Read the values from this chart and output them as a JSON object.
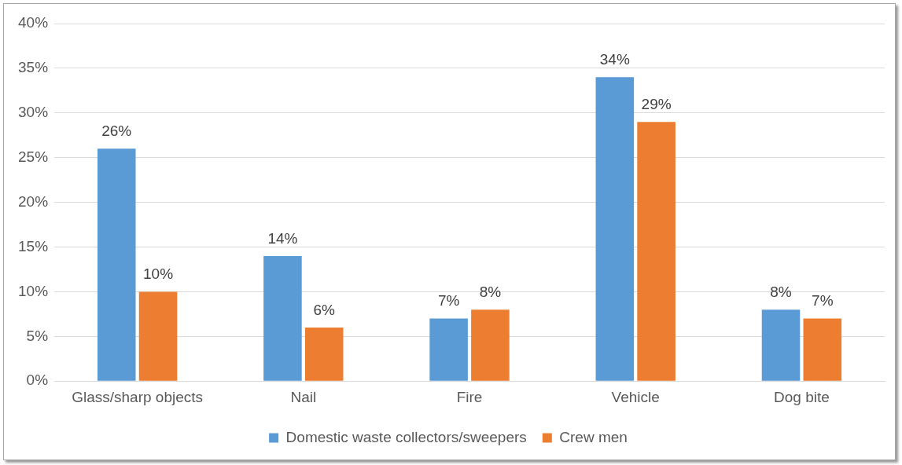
{
  "chart_data": {
    "type": "bar",
    "categories": [
      "Glass/sharp objects",
      "Nail",
      "Fire",
      "Vehicle",
      "Dog bite"
    ],
    "series": [
      {
        "name": "Domestic waste collectors/sweepers",
        "color": "#5b9bd5",
        "values": [
          26,
          14,
          7,
          34,
          8
        ]
      },
      {
        "name": "Crew men",
        "color": "#ed7d31",
        "values": [
          10,
          6,
          8,
          29,
          7
        ]
      }
    ],
    "ylim": [
      0,
      40
    ],
    "yticks": [
      {
        "value": 0,
        "label": "0%"
      },
      {
        "value": 5,
        "label": "5%"
      },
      {
        "value": 10,
        "label": "10%"
      },
      {
        "value": 15,
        "label": "15%"
      },
      {
        "value": 20,
        "label": "20%"
      },
      {
        "value": 25,
        "label": "25%"
      },
      {
        "value": 30,
        "label": "30%"
      },
      {
        "value": 35,
        "label": "35%"
      },
      {
        "value": 40,
        "label": "40%"
      }
    ],
    "value_labels": [
      [
        "26%",
        "14%",
        "7%",
        "34%",
        "8%"
      ],
      [
        "10%",
        "6%",
        "8%",
        "29%",
        "7%"
      ]
    ],
    "grid": "y",
    "legend": "bottom"
  }
}
